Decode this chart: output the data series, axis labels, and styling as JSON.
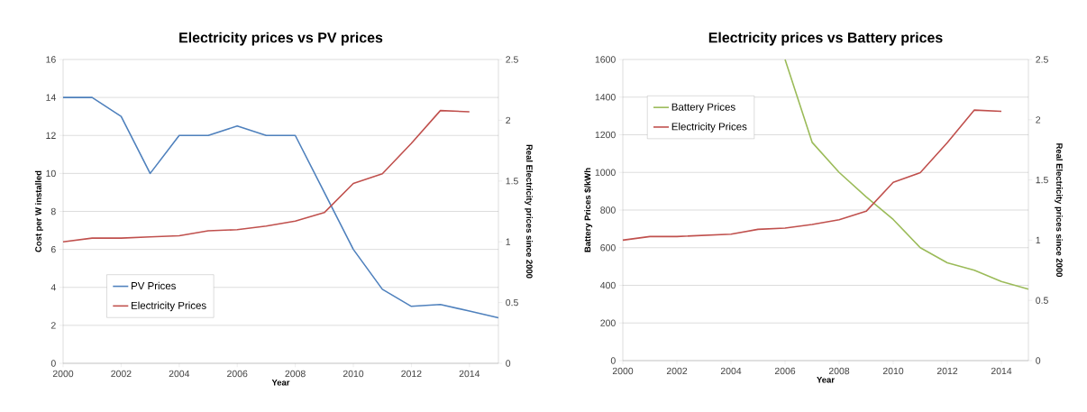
{
  "chart_data": [
    {
      "type": "line",
      "title": "Electricity prices vs PV prices",
      "xlabel": "Year",
      "ylabel": "Cost per W installed",
      "y2label": "Real Electricity prices since 2000",
      "x": [
        2000,
        2001,
        2002,
        2003,
        2004,
        2005,
        2006,
        2007,
        2008,
        2009,
        2010,
        2011,
        2012,
        2013,
        2014,
        2015
      ],
      "series": [
        {
          "name": "PV Prices",
          "color": "#4f81bd",
          "values": [
            14,
            14,
            13,
            10,
            12,
            12,
            12.5,
            12,
            12,
            9,
            6,
            3.9,
            3,
            3.1,
            2.75,
            2.4
          ]
        },
        {
          "name": "Electricity Prices",
          "color": "#c0504d",
          "axis": "y2",
          "values": [
            1.0,
            1.03,
            1.03,
            1.04,
            1.05,
            1.09,
            1.1,
            1.13,
            1.17,
            1.24,
            1.48,
            1.56,
            1.81,
            2.08,
            2.07,
            null
          ]
        }
      ],
      "xlim": [
        2000,
        2015
      ],
      "xticks": [
        2000,
        2002,
        2004,
        2006,
        2008,
        2010,
        2012,
        2014
      ],
      "ylim": [
        0,
        16
      ],
      "yticks": [
        0,
        2,
        4,
        6,
        8,
        10,
        12,
        14,
        16
      ],
      "y2lim": [
        0,
        2.5
      ],
      "y2ticks": [
        0,
        0.5,
        1,
        1.5,
        2,
        2.5
      ],
      "grid": "y",
      "legend": "bottom left"
    },
    {
      "type": "line",
      "title": "Electricity prices vs Battery prices",
      "xlabel": "Year",
      "ylabel": "Battery Prices $/kWh",
      "y2label": "Real Electricity prices since 2000",
      "x": [
        2000,
        2001,
        2002,
        2003,
        2004,
        2005,
        2006,
        2007,
        2008,
        2009,
        2010,
        2011,
        2012,
        2013,
        2014,
        2015
      ],
      "series": [
        {
          "name": "Battery Prices",
          "color": "#9bbb59",
          "values": [
            null,
            null,
            null,
            null,
            null,
            null,
            1600,
            1160,
            1000,
            870,
            750,
            600,
            520,
            480,
            420,
            380
          ]
        },
        {
          "name": "Electricity Prices",
          "color": "#c0504d",
          "axis": "y2",
          "values": [
            1.0,
            1.03,
            1.03,
            1.04,
            1.05,
            1.09,
            1.1,
            1.13,
            1.17,
            1.24,
            1.48,
            1.56,
            1.81,
            2.08,
            2.07,
            null
          ]
        }
      ],
      "xlim": [
        2000,
        2015
      ],
      "xticks": [
        2000,
        2002,
        2004,
        2006,
        2008,
        2010,
        2012,
        2014
      ],
      "ylim": [
        0,
        1600
      ],
      "yticks": [
        0,
        200,
        400,
        600,
        800,
        1000,
        1200,
        1400,
        1600
      ],
      "y2lim": [
        0,
        2.5
      ],
      "y2ticks": [
        0,
        0.5,
        1,
        1.5,
        2,
        2.5
      ],
      "grid": "y",
      "legend": "top left"
    }
  ]
}
